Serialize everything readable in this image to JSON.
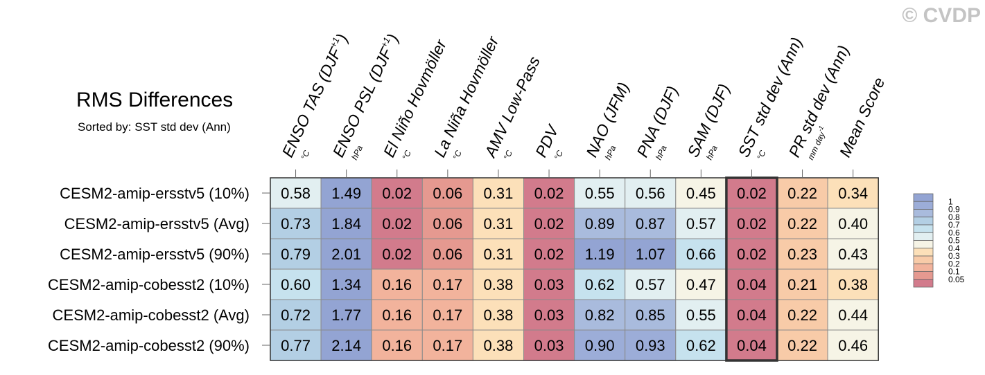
{
  "header": {
    "title": "RMS Differences",
    "subtitle": "Sorted by: SST std dev (Ann)",
    "copyright": "© CVDP"
  },
  "chart_data": {
    "type": "heatmap",
    "title": "RMS Differences",
    "subtitle": "Sorted by: SST std dev (Ann)",
    "columns": [
      {
        "label": "ENSO TAS (DJF",
        "sup": "+1",
        "close": ")",
        "unit": "°C"
      },
      {
        "label": "ENSO PSL (DJF",
        "sup": "+1",
        "close": ")",
        "unit": "hPa"
      },
      {
        "label": "El Niño Hovmöller",
        "unit": "°C"
      },
      {
        "label": "La Niña Hovmöller",
        "unit": "°C"
      },
      {
        "label": "AMV Low-Pass",
        "unit": "°C"
      },
      {
        "label": "PDV",
        "unit": "°C"
      },
      {
        "label": "NAO (JFM)",
        "unit": "hPa"
      },
      {
        "label": "PNA (DJF)",
        "unit": "hPa"
      },
      {
        "label": "SAM (DJF)",
        "unit": "hPa"
      },
      {
        "label": "SST std dev (Ann)",
        "unit": "°C"
      },
      {
        "label": "PR std dev (Ann)",
        "unit": "mm day",
        "unit_sup": "-1"
      },
      {
        "label": "Mean Score",
        "unit": ""
      }
    ],
    "rows": [
      "CESM2-amip-ersstv5 (10%)",
      "CESM2-amip-ersstv5 (Avg)",
      "CESM2-amip-ersstv5 (90%)",
      "CESM2-amip-cobesst2 (10%)",
      "CESM2-amip-cobesst2 (Avg)",
      "CESM2-amip-cobesst2 (90%)"
    ],
    "values": [
      [
        "0.58",
        "1.49",
        "0.02",
        "0.06",
        "0.31",
        "0.02",
        "0.55",
        "0.56",
        "0.45",
        "0.02",
        "0.22",
        "0.34"
      ],
      [
        "0.73",
        "1.84",
        "0.02",
        "0.06",
        "0.31",
        "0.02",
        "0.89",
        "0.87",
        "0.57",
        "0.02",
        "0.22",
        "0.40"
      ],
      [
        "0.79",
        "2.01",
        "0.02",
        "0.06",
        "0.31",
        "0.02",
        "1.19",
        "1.07",
        "0.66",
        "0.02",
        "0.23",
        "0.43"
      ],
      [
        "0.60",
        "1.34",
        "0.16",
        "0.17",
        "0.38",
        "0.03",
        "0.62",
        "0.57",
        "0.47",
        "0.04",
        "0.21",
        "0.38"
      ],
      [
        "0.72",
        "1.77",
        "0.16",
        "0.17",
        "0.38",
        "0.03",
        "0.82",
        "0.85",
        "0.55",
        "0.04",
        "0.22",
        "0.44"
      ],
      [
        "0.77",
        "2.14",
        "0.16",
        "0.17",
        "0.38",
        "0.03",
        "0.90",
        "0.93",
        "0.62",
        "0.04",
        "0.22",
        "0.46"
      ]
    ],
    "highlighted_column": "SST std dev (Ann)",
    "colorbar": {
      "labels": [
        "1",
        "0.9",
        "0.8",
        "0.7",
        "0.6",
        "0.5",
        "0.4",
        "0.3",
        "0.2",
        "0.1",
        "0.05"
      ],
      "thresholds": [
        0.05,
        0.1,
        0.2,
        0.3,
        0.4,
        0.5,
        0.6,
        0.7,
        0.8,
        0.9,
        1
      ],
      "colors": [
        "#d27b8c",
        "#e59990",
        "#f2b39c",
        "#f8cba8",
        "#fce0b9",
        "#f6f4e6",
        "#e2eff1",
        "#c6e2ee",
        "#b3cfe4",
        "#a9bbdd",
        "#9cadd8",
        "#93a4d3"
      ]
    }
  }
}
